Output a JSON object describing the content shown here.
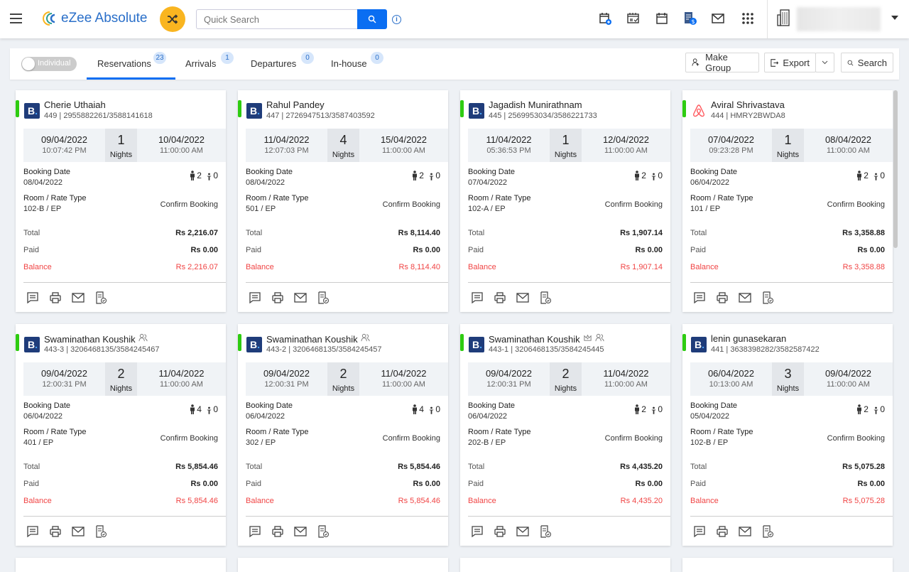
{
  "header": {
    "app_name": "eZee Absolute",
    "search_placeholder": "Quick Search",
    "info_icon": "i",
    "icons": [
      "calendar-add-icon",
      "calendar-check-icon",
      "calendar-icon",
      "invoice-dollar-icon",
      "mail-icon",
      "apps-grid-icon"
    ]
  },
  "toolbar": {
    "toggle_label": "Individual",
    "tabs": [
      {
        "label": "Reservations",
        "count": "23",
        "active": true
      },
      {
        "label": "Arrivals",
        "count": "1"
      },
      {
        "label": "Departures",
        "count": "0"
      },
      {
        "label": "In-house",
        "count": "0"
      }
    ],
    "make_group": "Make Group",
    "export": "Export",
    "search": "Search"
  },
  "colors": {
    "accent": "#0a6ef2",
    "status_green": "#2ecc11",
    "balance_red": "#f04444",
    "shuffle": "#f9b520"
  },
  "labels": {
    "booking_date": "Booking Date",
    "room_rate": "Room / Rate Type",
    "total": "Total",
    "paid": "Paid",
    "balance": "Balance",
    "nights": "Nights"
  },
  "cards": [
    {
      "name": "Cherie Uthaiah",
      "sub": "449 | 2955882261/3588141618",
      "source": "booking",
      "in_date": "09/04/2022",
      "in_time": "10:07:42 PM",
      "nights": "1",
      "out_date": "10/04/2022",
      "out_time": "11:00:00 AM",
      "booking_date": "08/04/2022",
      "adults": "2",
      "children": "0",
      "room": "102-B / EP",
      "status": "Confirm Booking",
      "total": "Rs 2,216.07",
      "paid": "Rs 0.00",
      "balance": "Rs 2,216.07",
      "icons": []
    },
    {
      "name": "Rahul Pandey",
      "sub": "447 | 2726947513/3587403592",
      "source": "booking",
      "in_date": "11/04/2022",
      "in_time": "12:07:03 PM",
      "nights": "4",
      "out_date": "15/04/2022",
      "out_time": "11:00:00 AM",
      "booking_date": "08/04/2022",
      "adults": "2",
      "children": "0",
      "room": "501 / EP",
      "status": "Confirm Booking",
      "total": "Rs 8,114.40",
      "paid": "Rs 0.00",
      "balance": "Rs 8,114.40",
      "icons": []
    },
    {
      "name": "Jagadish Munirathnam",
      "sub": "445 | 2569953034/3586221733",
      "source": "booking",
      "in_date": "11/04/2022",
      "in_time": "05:36:53 PM",
      "nights": "1",
      "out_date": "12/04/2022",
      "out_time": "11:00:00 AM",
      "booking_date": "07/04/2022",
      "adults": "2",
      "children": "0",
      "room": "102-A / EP",
      "status": "Confirm Booking",
      "total": "Rs 1,907.14",
      "paid": "Rs 0.00",
      "balance": "Rs 1,907.14",
      "icons": []
    },
    {
      "name": "Aviral Shrivastava",
      "sub": "444 | HMRY2BWDA8",
      "source": "airbnb",
      "in_date": "07/04/2022",
      "in_time": "09:23:28 PM",
      "nights": "1",
      "out_date": "08/04/2022",
      "out_time": "11:00:00 AM",
      "booking_date": "06/04/2022",
      "adults": "2",
      "children": "0",
      "room": "101 / EP",
      "status": "Confirm Booking",
      "total": "Rs 3,358.88",
      "paid": "Rs 0.00",
      "balance": "Rs 3,358.88",
      "icons": []
    },
    {
      "name": "Swaminathan Koushik",
      "sub": "443-3 | 3206468135/3584245467",
      "source": "booking",
      "in_date": "09/04/2022",
      "in_time": "12:00:31 PM",
      "nights": "2",
      "out_date": "11/04/2022",
      "out_time": "11:00:00 AM",
      "booking_date": "06/04/2022",
      "adults": "4",
      "children": "0",
      "room": "401 / EP",
      "status": "Confirm Booking",
      "total": "Rs 5,854.46",
      "paid": "Rs 0.00",
      "balance": "Rs 5,854.46",
      "icons": [
        "group-icon"
      ]
    },
    {
      "name": "Swaminathan Koushik",
      "sub": "443-2 | 3206468135/3584245457",
      "source": "booking",
      "in_date": "09/04/2022",
      "in_time": "12:00:31 PM",
      "nights": "2",
      "out_date": "11/04/2022",
      "out_time": "11:00:00 AM",
      "booking_date": "06/04/2022",
      "adults": "4",
      "children": "0",
      "room": "302 / EP",
      "status": "Confirm Booking",
      "total": "Rs 5,854.46",
      "paid": "Rs 0.00",
      "balance": "Rs 5,854.46",
      "icons": [
        "group-icon"
      ]
    },
    {
      "name": "Swaminathan Koushik",
      "sub": "443-1 | 3206468135/3584245445",
      "source": "booking",
      "in_date": "09/04/2022",
      "in_time": "12:00:31 PM",
      "nights": "2",
      "out_date": "11/04/2022",
      "out_time": "11:00:00 AM",
      "booking_date": "06/04/2022",
      "adults": "2",
      "children": "0",
      "room": "202-B / EP",
      "status": "Confirm Booking",
      "total": "Rs 4,435.20",
      "paid": "Rs 0.00",
      "balance": "Rs 4,435.20",
      "icons": [
        "crown-icon",
        "group-icon"
      ]
    },
    {
      "name": "lenin gunasekaran",
      "sub": "441 | 3638398282/3582587422",
      "source": "booking",
      "in_date": "06/04/2022",
      "in_time": "10:13:00 AM",
      "nights": "3",
      "out_date": "09/04/2022",
      "out_time": "11:00:00 AM",
      "booking_date": "05/04/2022",
      "adults": "2",
      "children": "0",
      "room": "102-B / EP",
      "status": "Confirm Booking",
      "total": "Rs 5,075.28",
      "paid": "Rs 0.00",
      "balance": "Rs 5,075.28",
      "icons": []
    }
  ]
}
